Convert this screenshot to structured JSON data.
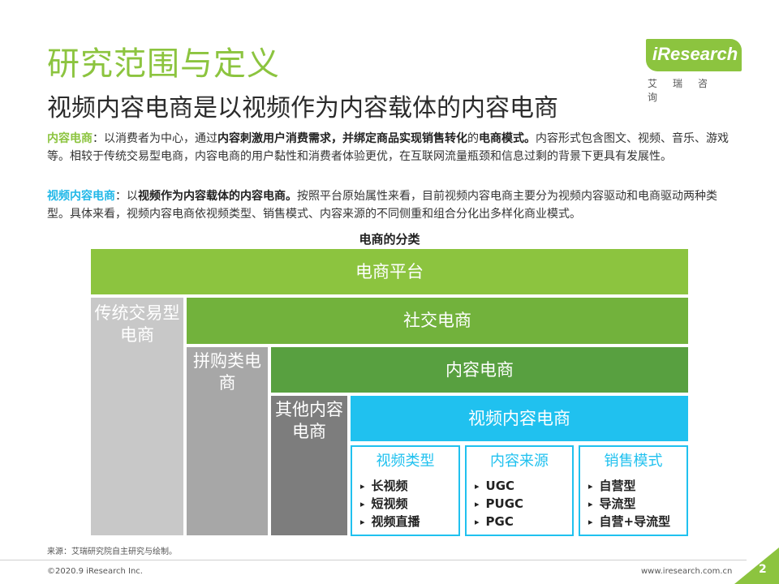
{
  "header": {
    "title": "研究范围与定义",
    "subtitle": "视频内容电商是以视频作为内容载体的内容电商"
  },
  "logo": {
    "wordmark": "iResearch",
    "chinese": "艾瑞咨询"
  },
  "paragraph1": {
    "term": "内容电商",
    "t1": "：以消费者为中心，通过",
    "b1": "内容刺激用户消费需求，并绑定商品实现销售转化",
    "t2": "的",
    "b2": "电商模式。",
    "t3": "内容形式包含图文、视频、音乐、游戏等。相较于传统交易型电商，内容电商的用户黏性和消费者体验更优，在互联网流量瓶颈和信息过剩的背景下更具有发展性。"
  },
  "paragraph2": {
    "term": "视频内容电商",
    "t1": "：以",
    "b1": "视频作为内容载体的内容电商。",
    "t2": "按照平台原始属性来看，目前视频内容电商主要分为视频内容驱动和电商驱动两种类型。具体来看，视频内容电商依视频类型、销售模式、内容来源的不同侧重和组合分化出多样化商业模式。"
  },
  "diagram": {
    "title": "电商的分类",
    "platform": "电商平台",
    "social": "社交电商",
    "content": "内容电商",
    "video": "视频内容电商",
    "traditional": "传统交易型电商",
    "groupbuy": "拼购类电商",
    "other": "其他内容电商",
    "boxes": [
      {
        "title": "视频类型",
        "items": [
          "长视频",
          "短视频",
          "视频直播"
        ]
      },
      {
        "title": "内容来源",
        "items": [
          "UGC",
          "PUGC",
          "PGC"
        ]
      },
      {
        "title": "销售模式",
        "items": [
          "自营型",
          "导流型",
          "自营+导流型"
        ]
      }
    ],
    "bullet": "▸"
  },
  "footer": {
    "source": "来源：艾瑞研究院自主研究与绘制。",
    "copyright": "©2020.9 iResearch Inc.",
    "website": "www.iresearch.com.cn",
    "page": "2"
  },
  "colors": {
    "brand_green": "#8cc43f",
    "mid_green": "#72b23c",
    "dark_green": "#58a040",
    "cyan": "#20c1ef"
  }
}
